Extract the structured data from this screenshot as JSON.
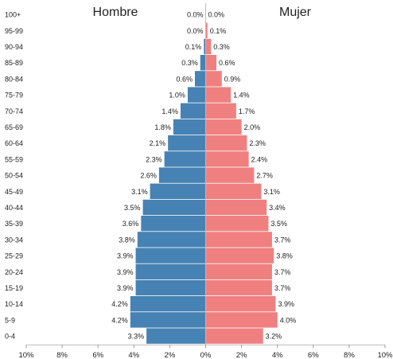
{
  "chart_data": {
    "type": "bar",
    "orientation": "horizontal",
    "subtype": "population-pyramid",
    "categories": [
      "100+",
      "95-99",
      "90-94",
      "85-89",
      "80-84",
      "75-79",
      "70-74",
      "65-69",
      "60-64",
      "55-59",
      "50-54",
      "45-49",
      "40-44",
      "35-39",
      "30-34",
      "25-29",
      "20-24",
      "15-19",
      "10-14",
      "5-9",
      "0-4"
    ],
    "series": [
      {
        "name": "Hombre",
        "color": "#4682b4",
        "side": "left",
        "values": [
          0.0,
          0.0,
          0.1,
          0.3,
          0.6,
          1.0,
          1.4,
          1.8,
          2.1,
          2.3,
          2.6,
          3.1,
          3.5,
          3.6,
          3.8,
          3.9,
          3.9,
          3.9,
          4.2,
          4.2,
          3.3
        ],
        "value_labels": [
          "0.0%",
          "0.0%",
          "0.1%",
          "0.3%",
          "0.6%",
          "1.0%",
          "1.4%",
          "1.8%",
          "2.1%",
          "2.3%",
          "2.6%",
          "3.1%",
          "3.5%",
          "3.6%",
          "3.8%",
          "3.9%",
          "3.9%",
          "3.9%",
          "4.2%",
          "4.2%",
          "3.3%"
        ]
      },
      {
        "name": "Mujer",
        "color": "#f08080",
        "side": "right",
        "values": [
          0.0,
          0.1,
          0.3,
          0.6,
          0.9,
          1.4,
          1.7,
          2.0,
          2.3,
          2.4,
          2.7,
          3.1,
          3.4,
          3.5,
          3.7,
          3.8,
          3.7,
          3.7,
          3.9,
          4.0,
          3.2
        ],
        "value_labels": [
          "0.0%",
          "0.1%",
          "0.3%",
          "0.6%",
          "0.9%",
          "1.4%",
          "1.7%",
          "2.0%",
          "2.3%",
          "2.4%",
          "2.7%",
          "3.1%",
          "3.4%",
          "3.5%",
          "3.7%",
          "3.8%",
          "3.7%",
          "3.7%",
          "3.9%",
          "4.0%",
          "3.2%"
        ]
      }
    ],
    "x_ticks": [
      "10%",
      "8%",
      "6%",
      "4%",
      "2%",
      "0%",
      "2%",
      "4%",
      "6%",
      "8%",
      "10%"
    ],
    "xlim": [
      -10,
      10
    ],
    "grid": false,
    "legend": "none",
    "title": "",
    "xlabel": "",
    "ylabel": ""
  }
}
